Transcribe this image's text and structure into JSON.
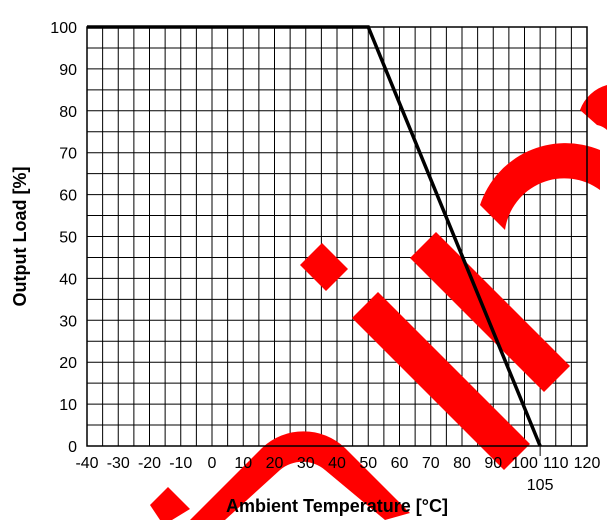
{
  "chart_data": {
    "type": "line",
    "title": "",
    "xlabel": "Ambient Temperature [°C]",
    "ylabel": "Output Load [%]",
    "xlim": [
      -40,
      120
    ],
    "ylim": [
      0,
      100
    ],
    "grid": true,
    "x_ticks": [
      -40,
      -30,
      -20,
      -10,
      0,
      10,
      20,
      30,
      40,
      50,
      60,
      70,
      80,
      90,
      100,
      110,
      120
    ],
    "y_ticks": [
      0,
      10,
      20,
      30,
      40,
      50,
      60,
      70,
      80,
      90,
      100
    ],
    "extra_x_ticks": [
      105
    ],
    "series": [
      {
        "x": [
          -40,
          50,
          105
        ],
        "y": [
          100,
          100,
          0
        ]
      }
    ],
    "colors": {
      "line": "#000000",
      "grid": "#000000",
      "watermark": "#ff0000"
    }
  }
}
